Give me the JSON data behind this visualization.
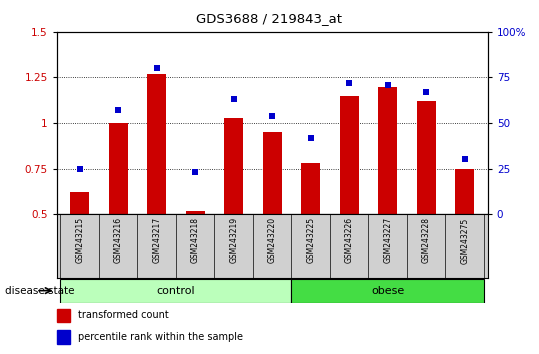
{
  "title": "GDS3688 / 219843_at",
  "samples": [
    "GSM243215",
    "GSM243216",
    "GSM243217",
    "GSM243218",
    "GSM243219",
    "GSM243220",
    "GSM243225",
    "GSM243226",
    "GSM243227",
    "GSM243228",
    "GSM243275"
  ],
  "transformed_count": [
    0.62,
    1.0,
    1.27,
    0.52,
    1.03,
    0.95,
    0.78,
    1.15,
    1.2,
    1.12,
    0.75
  ],
  "percentile_rank": [
    25,
    57,
    80,
    23,
    63,
    54,
    42,
    72,
    71,
    67,
    30
  ],
  "bar_color": "#cc0000",
  "point_color": "#0000cc",
  "ylim_left": [
    0.5,
    1.5
  ],
  "ylim_right": [
    0,
    100
  ],
  "yticks_left": [
    0.5,
    0.75,
    1.0,
    1.25,
    1.5
  ],
  "yticks_right": [
    0,
    25,
    50,
    75,
    100
  ],
  "yticklabels_right": [
    "0",
    "25",
    "50",
    "75",
    "100%"
  ],
  "control_indices": [
    0,
    1,
    2,
    3,
    4,
    5
  ],
  "obese_indices": [
    6,
    7,
    8,
    9,
    10
  ],
  "control_label": "control",
  "obese_label": "obese",
  "disease_state_label": "disease state",
  "legend_bar_label": "transformed count",
  "legend_point_label": "percentile rank within the sample",
  "control_color": "#bbffbb",
  "obese_color": "#44dd44",
  "label_area_color": "#d0d0d0",
  "bar_width": 0.5,
  "bar_bottom": 0.5
}
